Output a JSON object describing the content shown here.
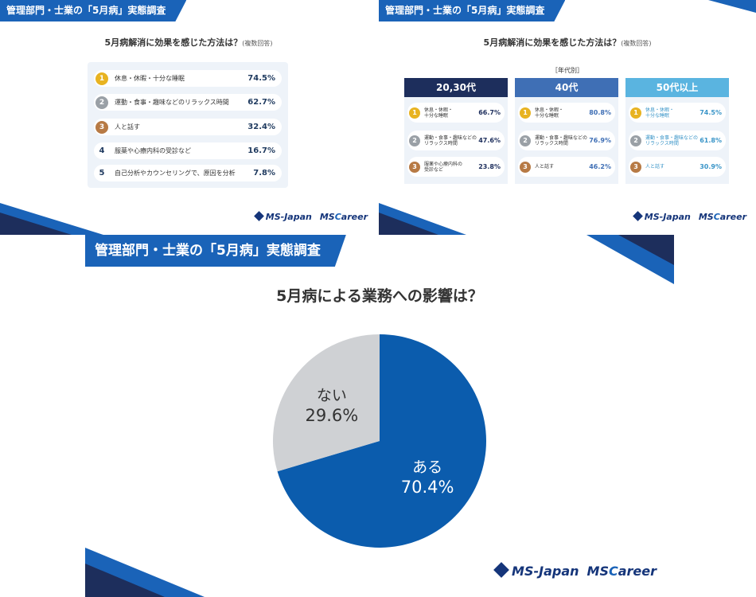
{
  "survey_title": "管理部門・士業の「5月病」実態調査",
  "brand": {
    "ms_japan": "MS-Japan",
    "ms_prefix": "MS",
    "career_c": "C",
    "career_rest": "areer"
  },
  "colors": {
    "banner": "#1a63b8",
    "navy": "#1d2e5c",
    "mid_blue": "#3f6fb5",
    "light_blue": "#5ab4e0",
    "pie_yes": "#0b5cad",
    "pie_no": "#cfd1d4"
  },
  "panel_overall": {
    "question": "5月病解消に効果を感じた方法は？",
    "question_note": "(複数回答)",
    "items": [
      {
        "rank": "1",
        "medal": "gold",
        "label": "休息・休暇・十分な睡眠",
        "value": "74.5%"
      },
      {
        "rank": "2",
        "medal": "silver",
        "label": "運動・食事・趣味などのリラックス時間",
        "value": "62.7%"
      },
      {
        "rank": "3",
        "medal": "bronze",
        "label": "人と話す",
        "value": "32.4%"
      },
      {
        "rank": "4",
        "medal": "none",
        "label": "服薬や心療内科の受診など",
        "value": "16.7%"
      },
      {
        "rank": "5",
        "medal": "none",
        "label": "自己分析やカウンセリングで、原因を分析",
        "value": "7.8%"
      }
    ]
  },
  "panel_age": {
    "question": "5月病解消に効果を感じた方法は？",
    "question_note": "(複数回答)",
    "caption": "［年代別］",
    "groups": [
      {
        "name": "20,30代",
        "items": [
          {
            "rank": "1",
            "medal": "gold",
            "label_1": "休息・休暇・",
            "label_2": "十分な睡眠",
            "value": "66.7%"
          },
          {
            "rank": "2",
            "medal": "silver",
            "label_1": "運動・食事・趣味などの",
            "label_2": "リラックス時間",
            "value": "47.6%"
          },
          {
            "rank": "3",
            "medal": "bronze",
            "label_1": "服薬や心療内科の",
            "label_2": "受診など",
            "value": "23.8%"
          }
        ]
      },
      {
        "name": "40代",
        "items": [
          {
            "rank": "1",
            "medal": "gold",
            "label_1": "休息・休暇・",
            "label_2": "十分な睡眠",
            "value": "80.8%"
          },
          {
            "rank": "2",
            "medal": "silver",
            "label_1": "運動・食事・趣味などの",
            "label_2": "リラックス時間",
            "value": "76.9%"
          },
          {
            "rank": "3",
            "medal": "bronze",
            "label_1": "人と話す",
            "label_2": "",
            "value": "46.2%"
          }
        ]
      },
      {
        "name": "50代以上",
        "items": [
          {
            "rank": "1",
            "medal": "gold",
            "label_1": "休息・休暇・",
            "label_2": "十分な睡眠",
            "value": "74.5%"
          },
          {
            "rank": "2",
            "medal": "silver",
            "label_1": "運動・食事・趣味などの",
            "label_2": "リラックス時間",
            "value": "61.8%"
          },
          {
            "rank": "3",
            "medal": "bronze",
            "label_1": "人と話す",
            "label_2": "",
            "value": "30.9%"
          }
        ]
      }
    ]
  },
  "chart_data": {
    "type": "pie",
    "title": "5月病による業務への影響は？",
    "slices": [
      {
        "label": "ある",
        "value": 70.4,
        "value_label": "70.4%",
        "color": "#0b5cad"
      },
      {
        "label": "ない",
        "value": 29.6,
        "value_label": "29.6%",
        "color": "#cfd1d4"
      }
    ],
    "start": "top",
    "direction": "clockwise",
    "legend": "none"
  }
}
